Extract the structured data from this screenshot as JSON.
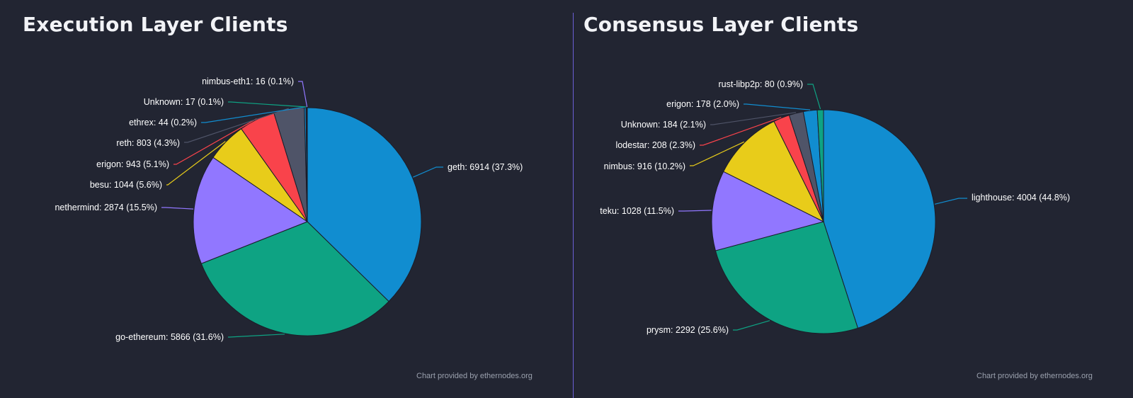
{
  "panels": [
    {
      "title": "Execution Layer Clients",
      "credit": "Chart provided by ethernodes.org"
    },
    {
      "title": "Consensus Layer Clients",
      "credit": "Chart provided by ethernodes.org"
    }
  ],
  "chart_data": [
    {
      "type": "pie",
      "title": "Execution Layer Clients",
      "slices": [
        {
          "name": "geth",
          "value": 6914,
          "percent": 37.3,
          "label": "geth: 6914 (37.3%)",
          "color": "#118dd0"
        },
        {
          "name": "go-ethereum",
          "value": 5866,
          "percent": 31.6,
          "label": "go-ethereum: 5866 (31.6%)",
          "color": "#0ea383"
        },
        {
          "name": "nethermind",
          "value": 2874,
          "percent": 15.5,
          "label": "nethermind: 2874 (15.5%)",
          "color": "#9177ff"
        },
        {
          "name": "besu",
          "value": 1044,
          "percent": 5.6,
          "label": "besu: 1044 (5.6%)",
          "color": "#e8cc1a"
        },
        {
          "name": "erigon",
          "value": 943,
          "percent": 5.1,
          "label": "erigon: 943 (5.1%)",
          "color": "#f9434b"
        },
        {
          "name": "reth",
          "value": 803,
          "percent": 4.3,
          "label": "reth: 803 (4.3%)",
          "color": "#4f5468"
        },
        {
          "name": "ethrex",
          "value": 44,
          "percent": 0.2,
          "label": "ethrex: 44 (0.2%)",
          "color": "#118dd0"
        },
        {
          "name": "Unknown",
          "value": 17,
          "percent": 0.1,
          "label": "Unknown: 17 (0.1%)",
          "color": "#0ea383"
        },
        {
          "name": "nimbus-eth1",
          "value": 16,
          "percent": 0.1,
          "label": "nimbus-eth1: 16 (0.1%)",
          "color": "#9177ff"
        }
      ]
    },
    {
      "type": "pie",
      "title": "Consensus Layer Clients",
      "slices": [
        {
          "name": "lighthouse",
          "value": 4004,
          "percent": 44.8,
          "label": "lighthouse: 4004 (44.8%)",
          "color": "#118dd0"
        },
        {
          "name": "prysm",
          "value": 2292,
          "percent": 25.6,
          "label": "prysm: 2292 (25.6%)",
          "color": "#0ea383"
        },
        {
          "name": "teku",
          "value": 1028,
          "percent": 11.5,
          "label": "teku: 1028 (11.5%)",
          "color": "#9177ff"
        },
        {
          "name": "nimbus",
          "value": 916,
          "percent": 10.2,
          "label": "nimbus: 916 (10.2%)",
          "color": "#e8cc1a"
        },
        {
          "name": "lodestar",
          "value": 208,
          "percent": 2.3,
          "label": "lodestar: 208 (2.3%)",
          "color": "#f9434b"
        },
        {
          "name": "Unknown",
          "value": 184,
          "percent": 2.1,
          "label": "Unknown: 184 (2.1%)",
          "color": "#4f5468"
        },
        {
          "name": "erigon",
          "value": 178,
          "percent": 2.0,
          "label": "erigon: 178 (2.0%)",
          "color": "#118dd0"
        },
        {
          "name": "rust-libp2p",
          "value": 80,
          "percent": 0.9,
          "label": "rust-libp2p: 80 (0.9%)",
          "color": "#0ea383"
        }
      ]
    }
  ]
}
